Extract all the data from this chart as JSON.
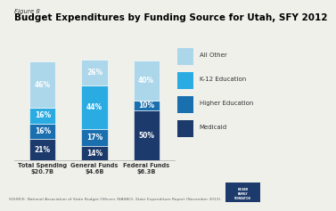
{
  "title": "Budget Expenditures by Funding Source for Utah, SFY 2012",
  "figure_label": "Figure 8",
  "categories": [
    "Total Spending\n$20.7B",
    "General Funds\n$4.6B",
    "Federal Funds\n$6.3B"
  ],
  "segments": {
    "Medicaid": [
      21,
      14,
      50
    ],
    "Higher Education": [
      16,
      17,
      10
    ],
    "K-12 Education": [
      16,
      44,
      0
    ],
    "All Other": [
      46,
      26,
      40
    ]
  },
  "colors": {
    "Medicaid": "#1c3a6b",
    "Higher Education": "#1a6faf",
    "K-12 Education": "#2aabe2",
    "All Other": "#acd6ea"
  },
  "legend_labels": [
    "All Other",
    "K-12 Education",
    "Higher Education",
    "Medicaid"
  ],
  "source_text": "SOURCE: National Association of State Budget Officers (NASBO), State Expenditure Report (November 2013).",
  "bar_width": 0.5,
  "ylim": [
    0,
    105
  ],
  "background_color": "#f0f0eb",
  "title_fontsize": 7.5,
  "figure_label_fontsize": 5.0,
  "tick_fontsize": 4.8,
  "legend_fontsize": 5.0,
  "source_fontsize": 3.2,
  "pct_fontsize": 5.5
}
